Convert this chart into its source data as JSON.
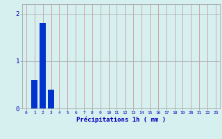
{
  "hours": [
    0,
    1,
    2,
    3,
    4,
    5,
    6,
    7,
    8,
    9,
    10,
    11,
    12,
    13,
    14,
    15,
    16,
    17,
    18,
    19,
    20,
    21,
    22,
    23
  ],
  "values": [
    0,
    0.6,
    1.8,
    0.4,
    0,
    0,
    0,
    0,
    0,
    0,
    0,
    0,
    0,
    0,
    0,
    0,
    0,
    0,
    0,
    0,
    0,
    0,
    0,
    0
  ],
  "bar_color": "#0033cc",
  "background_color": "#d6f0f0",
  "grid_color_v": "#cc8888",
  "grid_color_h": "#aaaaaa",
  "xlabel": "Précipitations 1h ( mm )",
  "xlabel_color": "#0000bb",
  "tick_color": "#0000bb",
  "ylim": [
    0,
    2.2
  ],
  "yticks": [
    0,
    1,
    2
  ],
  "xlim": [
    -0.5,
    23.5
  ],
  "bar_width": 0.75,
  "xtick_fontsize": 4.5,
  "ytick_fontsize": 6.5,
  "xlabel_fontsize": 6.5
}
